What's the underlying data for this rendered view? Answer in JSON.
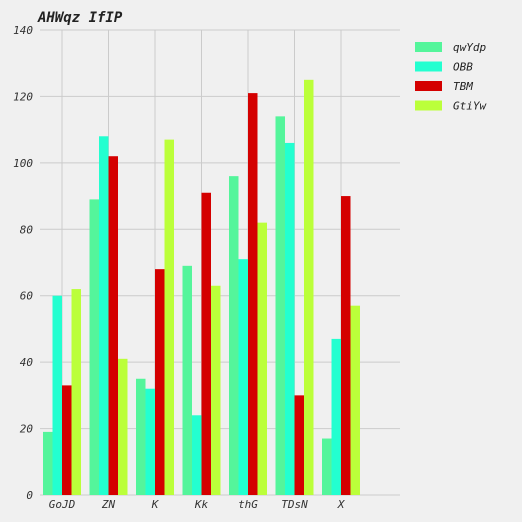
{
  "chart_data": {
    "type": "bar",
    "title": "AHWqz IfIP",
    "xlabel": "",
    "ylabel": "",
    "categories": [
      "GoJD",
      "ZN",
      "K",
      "Kk",
      "thG",
      "TDsN",
      "X"
    ],
    "ylim": [
      0,
      140
    ],
    "yticks": [
      0,
      20,
      40,
      60,
      80,
      100,
      120,
      140
    ],
    "grid": true,
    "legend_position": "top-right",
    "series": [
      {
        "name": "qwYdp",
        "color": "#54f59b",
        "values": [
          19,
          89,
          35,
          69,
          96,
          114,
          17
        ]
      },
      {
        "name": "OBB",
        "color": "#23ffd0",
        "values": [
          60,
          108,
          32,
          24,
          71,
          106,
          47
        ]
      },
      {
        "name": "TBM",
        "color": "#d40000",
        "values": [
          33,
          102,
          68,
          91,
          121,
          30,
          90
        ]
      },
      {
        "name": "GtiYw",
        "color": "#bbff3a",
        "values": [
          62,
          41,
          107,
          63,
          82,
          125,
          57
        ]
      }
    ]
  }
}
